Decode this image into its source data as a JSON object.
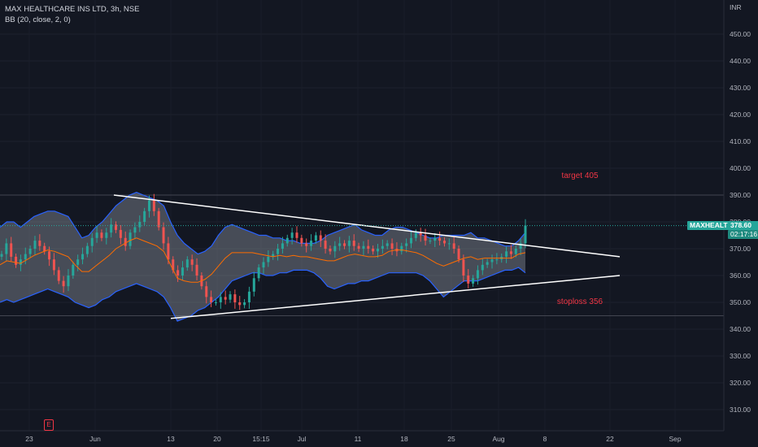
{
  "legend": {
    "symbol_line": "MAX HEALTHCARE INS LTD, 3h, NSE",
    "indicator_line": "BB (20, close, 2, 0)"
  },
  "colors": {
    "background": "#131722",
    "up": "#26a69a",
    "down": "#ef5350",
    "band": "#2962ff",
    "basis": "#ff6d00",
    "annotation": "#f23645",
    "trendline": "#ffffff",
    "badge": "#26a69a"
  },
  "badge": {
    "symbol": "MAXHEALTH",
    "price": "378.60",
    "timer": "02:17:16"
  },
  "events_icon": "earnings-e-icon",
  "chart_data": {
    "type": "candlestick",
    "title": "",
    "indicator": "BB (20, close, 2, 0)",
    "y_axis": {
      "unit": "INR",
      "ylim": [
        300,
        455
      ],
      "ticks": [
        310,
        320,
        330,
        340,
        350,
        360,
        370,
        380,
        390,
        400,
        410,
        420,
        430,
        440,
        450
      ]
    },
    "x_axis": {
      "labels": [
        "23",
        "Jun",
        "13",
        "20",
        "15:15",
        "Jul",
        "11",
        "18",
        "25",
        "Aug",
        "8",
        "22",
        "Sep"
      ]
    },
    "close_series": [
      368,
      372,
      367,
      364,
      366,
      368,
      370,
      373,
      371,
      369,
      366,
      362,
      358,
      356,
      360,
      364,
      366,
      368,
      371,
      374,
      376,
      374,
      376,
      379,
      377,
      374,
      371,
      376,
      378,
      380,
      384,
      388,
      384,
      378,
      372,
      366,
      362,
      360,
      363,
      366,
      364,
      360,
      356,
      352,
      350,
      350,
      352,
      351,
      353,
      350,
      349,
      350,
      354,
      359,
      363,
      365,
      367,
      368,
      370,
      372,
      374,
      376,
      374,
      372,
      371,
      373,
      375,
      373,
      370,
      369,
      371,
      372,
      371,
      373,
      371,
      370,
      371,
      370,
      369,
      370,
      371,
      372,
      370,
      369,
      371,
      372,
      374,
      376,
      375,
      373,
      373,
      374,
      373,
      372,
      372,
      370,
      366,
      360,
      357,
      359,
      362,
      364,
      365,
      366,
      366,
      367,
      369,
      368,
      370,
      372,
      378.6
    ],
    "bb_upper": [
      378,
      380,
      380,
      378,
      380,
      382,
      383,
      384,
      384,
      383,
      382,
      378,
      374,
      375,
      378,
      380,
      383,
      386,
      388,
      390,
      391,
      390,
      389,
      388,
      386,
      380,
      375,
      372,
      370,
      368,
      369,
      371,
      375,
      378,
      379,
      378,
      377,
      376,
      375,
      375,
      374,
      374,
      373,
      373,
      372,
      372,
      372,
      373,
      375,
      376,
      377,
      378,
      379,
      377,
      376,
      375,
      375,
      377,
      378,
      378,
      377,
      376,
      375,
      374,
      374,
      375,
      375,
      375,
      375,
      376,
      374,
      374,
      373,
      372,
      371,
      371,
      373,
      376
    ],
    "bb_lower": [
      350,
      351,
      350,
      351,
      352,
      353,
      354,
      355,
      354,
      353,
      352,
      350,
      349,
      348,
      349,
      351,
      352,
      354,
      355,
      356,
      357,
      356,
      355,
      354,
      352,
      348,
      343,
      344,
      345,
      347,
      348,
      350,
      352,
      355,
      358,
      359,
      360,
      361,
      361,
      360,
      360,
      361,
      361,
      362,
      362,
      362,
      361,
      359,
      356,
      355,
      356,
      357,
      357,
      358,
      358,
      359,
      360,
      361,
      361,
      361,
      361,
      361,
      360,
      358,
      355,
      352,
      354,
      356,
      358,
      358,
      358,
      359,
      360,
      361,
      362,
      362,
      363,
      361
    ],
    "annotations": [
      {
        "text": "target 405",
        "price": 397
      },
      {
        "text": "stoploss 356",
        "price": 350
      }
    ],
    "horizontal_levels": [
      390,
      345
    ],
    "trendlines": [
      {
        "from": [
          0.148,
          390
        ],
        "to": [
          0.818,
          367
        ]
      },
      {
        "from": [
          0.224,
          344
        ],
        "to": [
          0.818,
          360
        ]
      }
    ],
    "last_price": 378.6
  }
}
